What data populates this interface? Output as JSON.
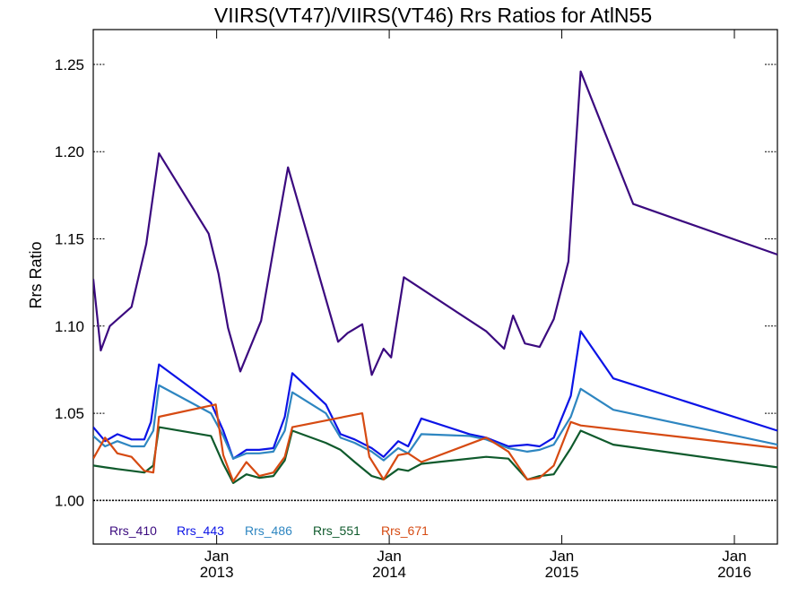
{
  "chart_data": {
    "type": "line",
    "title": "VIIRS(VT47)/VIIRS(VT46)  Rrs Ratios for AtlN55",
    "xlabel": "",
    "ylabel": "Rrs Ratio",
    "ylim": [
      0.975,
      1.27
    ],
    "xlim": [
      "2012-04-15",
      "2016-04-01"
    ],
    "yticks": [
      1.0,
      1.05,
      1.1,
      1.15,
      1.2,
      1.25
    ],
    "ytick_labels": [
      "1.00",
      "1.05",
      "1.10",
      "1.15",
      "1.20",
      "1.25"
    ],
    "xticks": [
      {
        "date": "2013-01-01",
        "month": "Jan",
        "year": "2013"
      },
      {
        "date": "2014-01-01",
        "month": "Jan",
        "year": "2014"
      },
      {
        "date": "2015-01-01",
        "month": "Jan",
        "year": "2015"
      },
      {
        "date": "2016-01-01",
        "month": "Jan",
        "year": "2016"
      }
    ],
    "reference_line": 1.0,
    "legend_position": "bottom-left",
    "series": [
      {
        "name": "Rrs_410",
        "color": "#3b0a7f",
        "points": [
          [
            "2012-04-15",
            1.127
          ],
          [
            "2012-05-01",
            1.086
          ],
          [
            "2012-05-20",
            1.1
          ],
          [
            "2012-07-05",
            1.111
          ],
          [
            "2012-08-05",
            1.147
          ],
          [
            "2012-09-01",
            1.199
          ],
          [
            "2012-12-15",
            1.153
          ],
          [
            "2013-01-05",
            1.13
          ],
          [
            "2013-01-25",
            1.099
          ],
          [
            "2013-02-20",
            1.074
          ],
          [
            "2013-04-05",
            1.103
          ],
          [
            "2013-05-05",
            1.15
          ],
          [
            "2013-06-01",
            1.191
          ],
          [
            "2013-09-15",
            1.091
          ],
          [
            "2013-10-05",
            1.096
          ],
          [
            "2013-11-05",
            1.101
          ],
          [
            "2013-11-25",
            1.072
          ],
          [
            "2013-12-20",
            1.087
          ],
          [
            "2014-01-05",
            1.082
          ],
          [
            "2014-02-01",
            1.128
          ],
          [
            "2014-07-25",
            1.097
          ],
          [
            "2014-09-01",
            1.087
          ],
          [
            "2014-09-20",
            1.106
          ],
          [
            "2014-10-15",
            1.09
          ],
          [
            "2014-11-15",
            1.088
          ],
          [
            "2014-12-15",
            1.104
          ],
          [
            "2015-01-15",
            1.137
          ],
          [
            "2015-02-10",
            1.246
          ],
          [
            "2015-06-01",
            1.17
          ],
          [
            "2016-04-01",
            1.141
          ]
        ]
      },
      {
        "name": "Rrs_443",
        "color": "#0c14e6",
        "points": [
          [
            "2012-04-15",
            1.042
          ],
          [
            "2012-05-10",
            1.034
          ],
          [
            "2012-06-05",
            1.038
          ],
          [
            "2012-07-05",
            1.035
          ],
          [
            "2012-08-01",
            1.035
          ],
          [
            "2012-08-15",
            1.045
          ],
          [
            "2012-09-01",
            1.078
          ],
          [
            "2012-12-20",
            1.056
          ],
          [
            "2013-01-15",
            1.04
          ],
          [
            "2013-02-05",
            1.024
          ],
          [
            "2013-03-05",
            1.029
          ],
          [
            "2013-04-01",
            1.029
          ],
          [
            "2013-05-01",
            1.03
          ],
          [
            "2013-05-25",
            1.048
          ],
          [
            "2013-06-10",
            1.073
          ],
          [
            "2013-08-20",
            1.055
          ],
          [
            "2013-09-20",
            1.038
          ],
          [
            "2013-10-20",
            1.035
          ],
          [
            "2013-11-25",
            1.03
          ],
          [
            "2013-12-20",
            1.025
          ],
          [
            "2014-01-20",
            1.034
          ],
          [
            "2014-02-10",
            1.031
          ],
          [
            "2014-03-10",
            1.047
          ],
          [
            "2014-06-20",
            1.038
          ],
          [
            "2014-07-25",
            1.036
          ],
          [
            "2014-09-10",
            1.031
          ],
          [
            "2014-10-20",
            1.032
          ],
          [
            "2014-11-15",
            1.031
          ],
          [
            "2014-12-15",
            1.036
          ],
          [
            "2015-01-20",
            1.06
          ],
          [
            "2015-02-10",
            1.097
          ],
          [
            "2015-04-20",
            1.07
          ],
          [
            "2016-04-01",
            1.04
          ]
        ]
      },
      {
        "name": "Rrs_486",
        "color": "#2e86c1",
        "points": [
          [
            "2012-04-15",
            1.037
          ],
          [
            "2012-05-10",
            1.031
          ],
          [
            "2012-06-05",
            1.034
          ],
          [
            "2012-07-05",
            1.031
          ],
          [
            "2012-08-01",
            1.031
          ],
          [
            "2012-08-20",
            1.04
          ],
          [
            "2012-09-01",
            1.066
          ],
          [
            "2012-12-20",
            1.05
          ],
          [
            "2013-01-15",
            1.037
          ],
          [
            "2013-02-05",
            1.024
          ],
          [
            "2013-03-05",
            1.027
          ],
          [
            "2013-04-01",
            1.027
          ],
          [
            "2013-05-01",
            1.028
          ],
          [
            "2013-05-25",
            1.04
          ],
          [
            "2013-06-10",
            1.062
          ],
          [
            "2013-08-20",
            1.05
          ],
          [
            "2013-09-20",
            1.036
          ],
          [
            "2013-10-20",
            1.033
          ],
          [
            "2013-11-25",
            1.028
          ],
          [
            "2013-12-20",
            1.023
          ],
          [
            "2014-01-20",
            1.03
          ],
          [
            "2014-02-10",
            1.027
          ],
          [
            "2014-03-10",
            1.038
          ],
          [
            "2014-06-20",
            1.037
          ],
          [
            "2014-07-25",
            1.035
          ],
          [
            "2014-09-10",
            1.03
          ],
          [
            "2014-10-20",
            1.028
          ],
          [
            "2014-11-15",
            1.029
          ],
          [
            "2014-12-15",
            1.032
          ],
          [
            "2015-01-20",
            1.048
          ],
          [
            "2015-02-10",
            1.064
          ],
          [
            "2015-04-20",
            1.052
          ],
          [
            "2016-04-01",
            1.032
          ]
        ]
      },
      {
        "name": "Rrs_551",
        "color": "#0f5a2c",
        "points": [
          [
            "2012-04-15",
            1.02
          ],
          [
            "2012-05-10",
            1.019
          ],
          [
            "2012-06-05",
            1.018
          ],
          [
            "2012-07-05",
            1.017
          ],
          [
            "2012-08-01",
            1.016
          ],
          [
            "2012-08-20",
            1.02
          ],
          [
            "2012-09-01",
            1.042
          ],
          [
            "2012-12-20",
            1.037
          ],
          [
            "2013-01-15",
            1.021
          ],
          [
            "2013-02-05",
            1.01
          ],
          [
            "2013-03-05",
            1.015
          ],
          [
            "2013-04-01",
            1.013
          ],
          [
            "2013-05-01",
            1.014
          ],
          [
            "2013-05-25",
            1.023
          ],
          [
            "2013-06-10",
            1.04
          ],
          [
            "2013-08-20",
            1.033
          ],
          [
            "2013-09-20",
            1.029
          ],
          [
            "2013-10-20",
            1.022
          ],
          [
            "2013-11-25",
            1.014
          ],
          [
            "2013-12-20",
            1.012
          ],
          [
            "2014-01-20",
            1.018
          ],
          [
            "2014-02-10",
            1.017
          ],
          [
            "2014-03-10",
            1.021
          ],
          [
            "2014-07-25",
            1.025
          ],
          [
            "2014-09-10",
            1.024
          ],
          [
            "2014-10-20",
            1.012
          ],
          [
            "2014-11-15",
            1.014
          ],
          [
            "2014-12-15",
            1.015
          ],
          [
            "2015-01-20",
            1.03
          ],
          [
            "2015-02-10",
            1.04
          ],
          [
            "2015-04-20",
            1.032
          ],
          [
            "2016-04-01",
            1.019
          ]
        ]
      },
      {
        "name": "Rrs_671",
        "color": "#d64a12",
        "points": [
          [
            "2012-04-15",
            1.024
          ],
          [
            "2012-05-10",
            1.036
          ],
          [
            "2012-06-05",
            1.027
          ],
          [
            "2012-07-05",
            1.025
          ],
          [
            "2012-08-01",
            1.017
          ],
          [
            "2012-08-20",
            1.016
          ],
          [
            "2012-09-01",
            1.048
          ],
          [
            "2012-12-30",
            1.055
          ],
          [
            "2013-01-15",
            1.026
          ],
          [
            "2013-02-05",
            1.011
          ],
          [
            "2013-03-05",
            1.022
          ],
          [
            "2013-04-01",
            1.014
          ],
          [
            "2013-05-01",
            1.016
          ],
          [
            "2013-05-25",
            1.025
          ],
          [
            "2013-06-10",
            1.042
          ],
          [
            "2013-11-05",
            1.05
          ],
          [
            "2013-11-20",
            1.025
          ],
          [
            "2013-12-20",
            1.012
          ],
          [
            "2014-01-20",
            1.026
          ],
          [
            "2014-02-10",
            1.027
          ],
          [
            "2014-03-10",
            1.022
          ],
          [
            "2014-07-25",
            1.036
          ],
          [
            "2014-09-10",
            1.028
          ],
          [
            "2014-10-20",
            1.012
          ],
          [
            "2014-11-15",
            1.013
          ],
          [
            "2014-12-15",
            1.02
          ],
          [
            "2015-01-20",
            1.045
          ],
          [
            "2015-02-10",
            1.043
          ],
          [
            "2016-04-01",
            1.03
          ]
        ]
      }
    ]
  }
}
